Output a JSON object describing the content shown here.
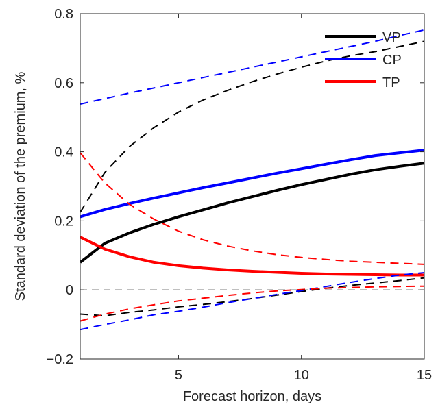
{
  "chart_data": {
    "type": "line",
    "title": "",
    "xlabel": "Forecast horizon, days",
    "ylabel": "Standard deviation of the premium, %",
    "xlim": [
      1,
      15
    ],
    "ylim": [
      -0.2,
      0.8
    ],
    "xticks": [
      5,
      10,
      15
    ],
    "xtick_labels": [
      "5",
      "10",
      "15"
    ],
    "yticks": [
      -0.2,
      0,
      0.2,
      0.4,
      0.6,
      0.8
    ],
    "ytick_labels": [
      "−0.2",
      "0",
      "0.2",
      "0.4",
      "0.6",
      "0.8"
    ],
    "grid": false,
    "legend_position": "top-right",
    "x": [
      1,
      2,
      3,
      4,
      5,
      6,
      7,
      8,
      9,
      10,
      11,
      12,
      13,
      14,
      15
    ],
    "series": [
      {
        "name": "VP",
        "color": "#000000",
        "style": "solid",
        "in_legend": true,
        "values": [
          0.08,
          0.135,
          0.165,
          0.19,
          0.212,
          0.232,
          0.252,
          0.27,
          0.288,
          0.305,
          0.32,
          0.335,
          0.348,
          0.358,
          0.367
        ]
      },
      {
        "name": "CP",
        "color": "#0000ff",
        "style": "solid",
        "in_legend": true,
        "values": [
          0.212,
          0.233,
          0.25,
          0.266,
          0.281,
          0.296,
          0.31,
          0.324,
          0.338,
          0.351,
          0.364,
          0.377,
          0.389,
          0.397,
          0.405
        ]
      },
      {
        "name": "TP",
        "color": "#ff0000",
        "style": "solid",
        "in_legend": true,
        "values": [
          0.153,
          0.118,
          0.096,
          0.08,
          0.07,
          0.063,
          0.058,
          0.054,
          0.051,
          0.048,
          0.046,
          0.045,
          0.044,
          0.043,
          0.043
        ]
      },
      {
        "name": "",
        "color": "#000000",
        "style": "dashed",
        "in_legend": false,
        "values": [
          0.225,
          0.34,
          0.415,
          0.47,
          0.515,
          0.55,
          0.578,
          0.603,
          0.625,
          0.645,
          0.663,
          0.678,
          0.69,
          0.705,
          0.72
        ]
      },
      {
        "name": "",
        "color": "#000000",
        "style": "dashed",
        "in_legend": false,
        "values": [
          -0.07,
          -0.075,
          -0.065,
          -0.058,
          -0.049,
          -0.042,
          -0.034,
          -0.025,
          -0.015,
          -0.005,
          0.005,
          0.013,
          0.02,
          0.027,
          0.035
        ]
      },
      {
        "name": "",
        "color": "#0000ff",
        "style": "dashed",
        "in_legend": false,
        "values": [
          0.538,
          0.554,
          0.57,
          0.585,
          0.6,
          0.615,
          0.63,
          0.645,
          0.66,
          0.675,
          0.69,
          0.705,
          0.72,
          0.737,
          0.753
        ]
      },
      {
        "name": "",
        "color": "#0000ff",
        "style": "dashed",
        "in_legend": false,
        "values": [
          -0.115,
          -0.1,
          -0.087,
          -0.072,
          -0.062,
          -0.05,
          -0.037,
          -0.025,
          -0.013,
          -0.002,
          0.01,
          0.022,
          0.033,
          0.043,
          0.05
        ]
      },
      {
        "name": "",
        "color": "#ff0000",
        "style": "dashed",
        "in_legend": false,
        "values": [
          0.397,
          0.31,
          0.248,
          0.205,
          0.17,
          0.145,
          0.127,
          0.113,
          0.102,
          0.094,
          0.088,
          0.083,
          0.08,
          0.077,
          0.074
        ]
      },
      {
        "name": "",
        "color": "#ff0000",
        "style": "dashed",
        "in_legend": false,
        "values": [
          -0.09,
          -0.07,
          -0.055,
          -0.043,
          -0.032,
          -0.024,
          -0.016,
          -0.009,
          -0.003,
          0.001,
          0.005,
          0.007,
          0.009,
          0.01,
          0.011
        ]
      },
      {
        "name": "",
        "color": "#000000",
        "style": "dashed-thin",
        "in_legend": false,
        "values": [
          0,
          0,
          0,
          0,
          0,
          0,
          0,
          0,
          0,
          0,
          0,
          0,
          0,
          0,
          0
        ]
      }
    ]
  }
}
